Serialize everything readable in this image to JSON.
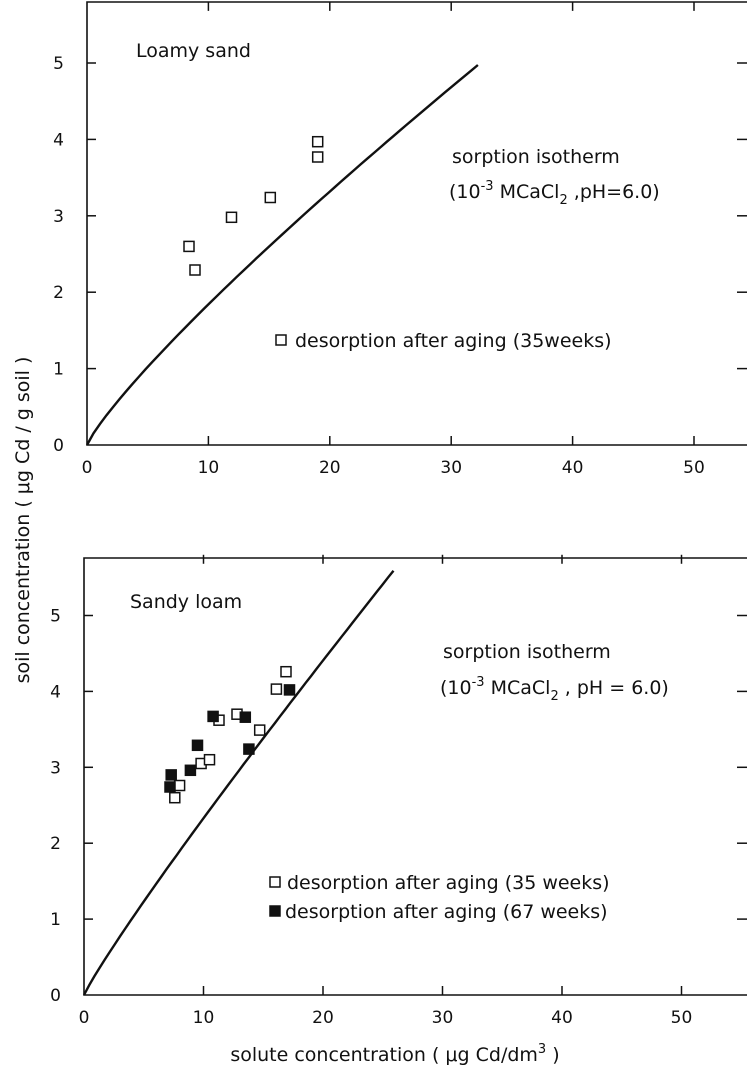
{
  "chart_data": [
    {
      "type": "scatter",
      "panel_label": "Loamy sand",
      "curve_label": "sorption isotherm",
      "condition": {
        "pre": "(10",
        "exp": "-3",
        "mid": " MCaCl",
        "sub": "2",
        "post": " ,pH=6.0)"
      },
      "xlim": [
        0,
        54
      ],
      "ylim": [
        0,
        5.8
      ],
      "xticks": [
        0,
        10,
        20,
        30,
        40,
        50
      ],
      "yticks": [
        0,
        1,
        2,
        3,
        4,
        5
      ],
      "isotherm": {
        "x_max": 32.2,
        "k": 0.26,
        "n": 0.85
      },
      "series": [
        {
          "name": "desorption after aging (35weeks)",
          "marker": "open-square",
          "points": [
            [
              8.4,
              2.6
            ],
            [
              8.9,
              2.29
            ],
            [
              11.9,
              2.98
            ],
            [
              15.1,
              3.24
            ],
            [
              19.0,
              3.97
            ],
            [
              19.0,
              3.77
            ]
          ]
        }
      ]
    },
    {
      "type": "scatter",
      "panel_label": "Sandy loam",
      "curve_label": "sorption isotherm",
      "condition": {
        "pre": "(10",
        "exp": "-3",
        "mid": " MCaCl",
        "sub": "2",
        "post": " , pH = 6.0)"
      },
      "xlim": [
        0,
        54
      ],
      "ylim": [
        0,
        5.8
      ],
      "xticks": [
        0,
        10,
        20,
        30,
        40,
        50
      ],
      "yticks": [
        0,
        1,
        2,
        3,
        4,
        5
      ],
      "isotherm": {
        "x_max": 25.9,
        "k": 0.28,
        "n": 0.92
      },
      "series": [
        {
          "name": "desorption after aging (35 weeks)",
          "marker": "open-square",
          "points": [
            [
              7.6,
              2.6
            ],
            [
              8.0,
              2.76
            ],
            [
              9.8,
              3.05
            ],
            [
              10.5,
              3.1
            ],
            [
              11.3,
              3.62
            ],
            [
              12.8,
              3.7
            ],
            [
              14.7,
              3.49
            ],
            [
              16.1,
              4.03
            ],
            [
              16.9,
              4.26
            ]
          ]
        },
        {
          "name": "desorption after aging (67 weeks)",
          "marker": "filled-square",
          "points": [
            [
              7.2,
              2.74
            ],
            [
              7.3,
              2.9
            ],
            [
              8.9,
              2.96
            ],
            [
              9.5,
              3.29
            ],
            [
              10.8,
              3.67
            ],
            [
              13.5,
              3.66
            ],
            [
              13.8,
              3.24
            ],
            [
              17.2,
              4.02
            ]
          ]
        }
      ]
    }
  ],
  "axes": {
    "ylabel": "soil concentration  ( μg Cd / g soil )",
    "xlabel_pre": "solute concentration ( μg Cd/dm",
    "xlabel_sup": "3",
    "xlabel_post": " )"
  }
}
